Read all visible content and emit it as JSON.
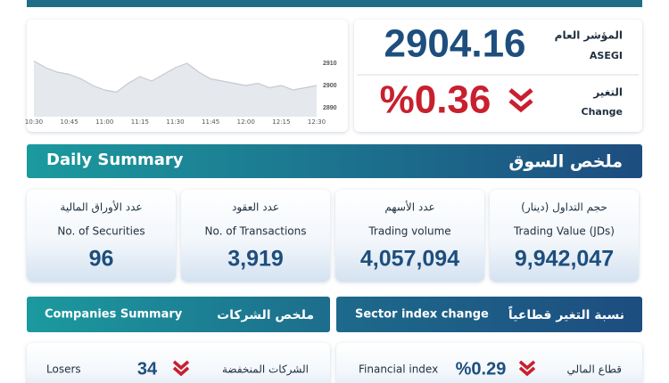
{
  "header": {
    "index_name_ar": "المؤشر العام",
    "index_name_en": "ASEGI",
    "index_value": "2904.16",
    "change_label_ar": "التغير",
    "change_label_en": "Change",
    "change_value": "%0.36"
  },
  "chart_data": {
    "type": "area",
    "categories": [
      "10:30",
      null,
      null,
      "10:45",
      null,
      null,
      "11:00",
      null,
      null,
      "11:15",
      null,
      null,
      "11:30",
      null,
      null,
      "11:45",
      null,
      null,
      "12:00",
      null,
      null,
      "12:15",
      null,
      null,
      "12:30"
    ],
    "values": [
      2911,
      2908,
      2906,
      2905,
      2903,
      2900,
      2898,
      2897,
      2901,
      2904,
      2902,
      2905,
      2908,
      2910,
      2906,
      2903,
      2902,
      2901,
      2900,
      2901,
      2899,
      2900,
      2898,
      2899,
      2900
    ],
    "ylim": [
      2886,
      2914
    ],
    "yticks": [
      2890,
      2900,
      2910
    ],
    "color": "#c3cad2",
    "fill": "#e5e8ec"
  },
  "daily_summary": {
    "title_en": "Daily Summary",
    "title_ar": "ملخص السوق",
    "cards": [
      {
        "label_ar": "عدد الأوراق المالية",
        "label_en": "No. of Securities",
        "value": "96"
      },
      {
        "label_ar": "عدد العقود",
        "label_en": "No. of Transactions",
        "value": "3,919"
      },
      {
        "label_ar": "عدد الأسهم",
        "label_en": "Trading volume",
        "value": "4,057,094"
      },
      {
        "label_ar": "حجم التداول (دينار)",
        "label_en": "Trading Value (JDs)",
        "value": "9,942,047"
      }
    ]
  },
  "companies_summary": {
    "title_en": "Companies Summary",
    "title_ar": "ملخص الشركات",
    "rows": [
      {
        "label_en": "Losers",
        "value": "34",
        "label_ar": "الشركات المنخفضة"
      }
    ]
  },
  "sector_change": {
    "title_en": "Sector index change",
    "title_ar": "نسبة التغير قطاعياً",
    "rows": [
      {
        "label_en": "Financial index",
        "value": "%0.29",
        "label_ar": "قطاع المالي"
      }
    ]
  }
}
